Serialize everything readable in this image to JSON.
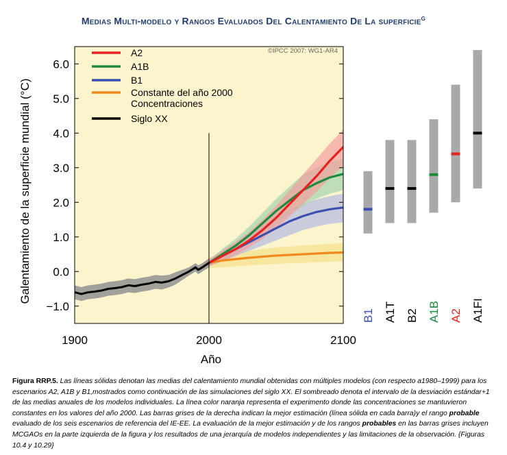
{
  "title": {
    "text": "Medias Multi-modelo y Rangos Evaluados Del Calentamiento De La superficie",
    "superscript": "g"
  },
  "caption": {
    "label": "Figura RRP.5.",
    "part1": " Las líneas sólidas denotan las medias del calentamiento mundial obtenidas con múltiples modelos (con respecto a1980–1999) para los escenarios A2, A1B y B1,mostrados como continuación de las simulaciones del siglo XX. El sombreado denota el intervalo de la desviación estándar+1 de las medias anuales de los modelos individuales. La línea color naranja representa el experimento donde las concentraciones se mantuvieron constantes en los valores del año 2000. Las barras grises de la derecha indican la mejor estimación (línea sólida en cada barra)y el rango ",
    "em1": "probable",
    "part2": " evaluado de los seis escenarios de referencia del IE-EE. La evaluación de la mejor estimación y de los rangos ",
    "em2": "probables",
    "part3": " en las barras grises incluyen MCGAOs en la parte izquierda de la figura y los resultados de una jerarquía de modelos independientes y las limitaciones de la observación. {Figuras 10.4 y 10.29}"
  },
  "chart_data": {
    "type": "line",
    "ylabel": "Galentamiento de la superficie mundial (°C)",
    "xlabel": "Año",
    "xlim": [
      1900,
      2100
    ],
    "ylim": [
      -1.5,
      6.5
    ],
    "xticks": [
      1900,
      2000,
      2100
    ],
    "yticks": [
      6.0,
      5.0,
      4.0,
      3.0,
      2.0,
      1.0,
      0.0,
      -1.0
    ],
    "ytick_labels": [
      "6.0",
      "5.0",
      "4.0",
      "3.0",
      "2.0",
      "1.0",
      "0.0",
      "−1.0"
    ],
    "vline": {
      "x": 2000,
      "y_top": 4.0
    },
    "copyright": "©IPCC  2007: WG1-AR4",
    "legend_position": "top-left",
    "colors": {
      "background": "#fcf4cd",
      "A2": "#e82020",
      "A1B": "#1e8a3c",
      "B1": "#3d4fae",
      "const": "#f08a1e",
      "hist": "#000000",
      "bar": "#a9a9a9"
    },
    "series": [
      {
        "name": "A2",
        "color": "#e82020",
        "x": [
          2000,
          2010,
          2020,
          2030,
          2040,
          2050,
          2060,
          2070,
          2080,
          2090,
          2100
        ],
        "y": [
          0.25,
          0.45,
          0.65,
          0.9,
          1.2,
          1.55,
          1.95,
          2.35,
          2.75,
          3.2,
          3.6
        ],
        "band": {
          "color": "#f2a0a0",
          "low": [
            0.15,
            0.3,
            0.48,
            0.7,
            0.95,
            1.25,
            1.6,
            1.95,
            2.3,
            2.7,
            3.05
          ],
          "high": [
            0.35,
            0.6,
            0.85,
            1.15,
            1.5,
            1.9,
            2.35,
            2.8,
            3.25,
            3.7,
            4.1
          ]
        }
      },
      {
        "name": "A1B",
        "color": "#1e8a3c",
        "x": [
          2000,
          2010,
          2020,
          2030,
          2040,
          2050,
          2060,
          2070,
          2080,
          2090,
          2100
        ],
        "y": [
          0.25,
          0.5,
          0.75,
          1.05,
          1.4,
          1.75,
          2.05,
          2.35,
          2.55,
          2.72,
          2.82
        ],
        "band": {
          "color": "#a4d4b0",
          "low": [
            0.15,
            0.35,
            0.55,
            0.8,
            1.1,
            1.4,
            1.65,
            1.9,
            2.1,
            2.25,
            2.35
          ],
          "high": [
            0.35,
            0.65,
            0.95,
            1.3,
            1.7,
            2.1,
            2.45,
            2.8,
            3.0,
            3.15,
            3.25
          ]
        }
      },
      {
        "name": "B1",
        "color": "#3d4fae",
        "x": [
          2000,
          2010,
          2020,
          2030,
          2040,
          2050,
          2060,
          2070,
          2080,
          2090,
          2100
        ],
        "y": [
          0.25,
          0.45,
          0.65,
          0.85,
          1.05,
          1.25,
          1.45,
          1.6,
          1.72,
          1.8,
          1.85
        ],
        "band": {
          "color": "#b3bae0",
          "low": [
            0.15,
            0.3,
            0.45,
            0.6,
            0.75,
            0.9,
            1.05,
            1.2,
            1.3,
            1.38,
            1.42
          ],
          "high": [
            0.35,
            0.6,
            0.85,
            1.1,
            1.35,
            1.6,
            1.8,
            1.95,
            2.08,
            2.18,
            2.25
          ]
        }
      },
      {
        "name": "Constante del año 2000",
        "name2": "Concentraciones",
        "color": "#f08a1e",
        "x": [
          2000,
          2010,
          2020,
          2030,
          2040,
          2050,
          2060,
          2070,
          2080,
          2090,
          2100
        ],
        "y": [
          0.25,
          0.32,
          0.36,
          0.4,
          0.43,
          0.46,
          0.48,
          0.5,
          0.52,
          0.54,
          0.55
        ],
        "band": {
          "color": "#f3e08a",
          "low": [
            0.1,
            0.12,
            0.15,
            0.18,
            0.2,
            0.22,
            0.24,
            0.25,
            0.27,
            0.28,
            0.3
          ],
          "high": [
            0.4,
            0.5,
            0.55,
            0.6,
            0.65,
            0.7,
            0.72,
            0.75,
            0.78,
            0.8,
            0.82
          ]
        }
      },
      {
        "name": "Siglo XX",
        "color": "#000000",
        "x": [
          1900,
          1905,
          1910,
          1915,
          1920,
          1925,
          1930,
          1935,
          1940,
          1945,
          1950,
          1955,
          1960,
          1965,
          1970,
          1975,
          1980,
          1985,
          1990,
          1992,
          1995,
          2000
        ],
        "y": [
          -0.6,
          -0.65,
          -0.6,
          -0.58,
          -0.55,
          -0.5,
          -0.48,
          -0.45,
          -0.4,
          -0.42,
          -0.38,
          -0.35,
          -0.3,
          -0.32,
          -0.28,
          -0.2,
          -0.1,
          0.0,
          0.12,
          0.05,
          0.12,
          0.25
        ],
        "band": {
          "color": "#909090",
          "low": [
            -0.8,
            -0.85,
            -0.8,
            -0.78,
            -0.75,
            -0.7,
            -0.68,
            -0.65,
            -0.6,
            -0.62,
            -0.58,
            -0.55,
            -0.5,
            -0.52,
            -0.46,
            -0.38,
            -0.25,
            -0.12,
            0.0,
            -0.08,
            0.0,
            0.12
          ],
          "high": [
            -0.4,
            -0.45,
            -0.4,
            -0.38,
            -0.35,
            -0.3,
            -0.28,
            -0.25,
            -0.2,
            -0.22,
            -0.18,
            -0.15,
            -0.1,
            -0.12,
            -0.1,
            -0.02,
            0.05,
            0.12,
            0.24,
            0.18,
            0.24,
            0.38
          ]
        }
      }
    ],
    "ranges": [
      {
        "label": "B1",
        "label_color": "#3d4fae",
        "low": 1.1,
        "high": 2.9,
        "best": 1.8,
        "best_color": "#3d4fae"
      },
      {
        "label": "A1T",
        "label_color": "#000000",
        "low": 1.4,
        "high": 3.8,
        "best": 2.4,
        "best_color": "#000000"
      },
      {
        "label": "B2",
        "label_color": "#000000",
        "low": 1.4,
        "high": 3.8,
        "best": 2.4,
        "best_color": "#000000"
      },
      {
        "label": "A1B",
        "label_color": "#1e8a3c",
        "low": 1.7,
        "high": 4.4,
        "best": 2.8,
        "best_color": "#1e8a3c"
      },
      {
        "label": "A2",
        "label_color": "#e82020",
        "low": 2.0,
        "high": 5.4,
        "best": 3.4,
        "best_color": "#e82020"
      },
      {
        "label": "A1FI",
        "label_color": "#000000",
        "low": 2.4,
        "high": 6.4,
        "best": 4.0,
        "best_color": "#000000"
      }
    ]
  }
}
